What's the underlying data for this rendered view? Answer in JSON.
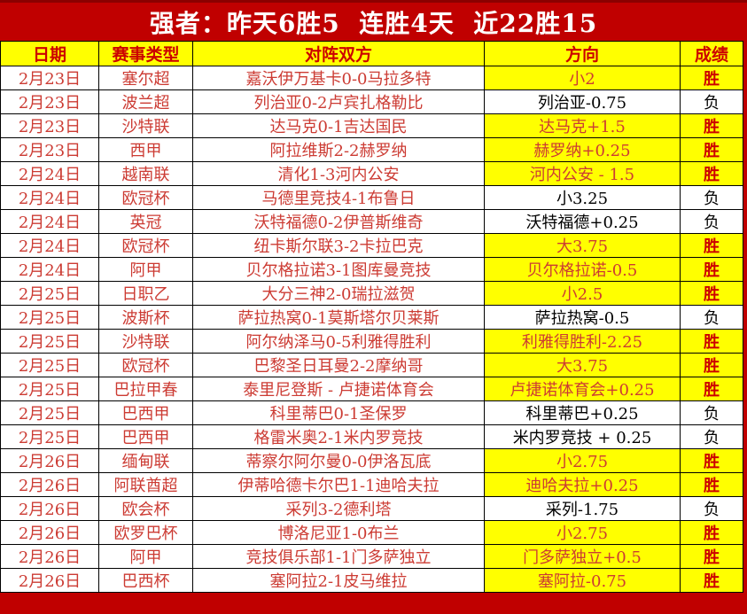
{
  "banner": {
    "title": "强者：昨天6胜5  连胜4天  近22胜15"
  },
  "colors": {
    "banner_red": "#c00000",
    "dark_red": "#8b0000",
    "highlight_yellow": "#ffff00",
    "win_text_red": "#cc0000",
    "cell_text_red": "#cc3b33",
    "loss_text_black": "#000000"
  },
  "table": {
    "columns": [
      "日期",
      "赛事类型",
      "对阵双方",
      "方向",
      "成绩"
    ],
    "rows": [
      {
        "date": "2月23日",
        "league": "塞尔超",
        "match": "嘉沃伊万基卡0-0马拉多特",
        "direction": "小2",
        "result": "胜",
        "win": true
      },
      {
        "date": "2月23日",
        "league": "波兰超",
        "match": "列治亚0-2卢宾扎格勒比",
        "direction": "列治亚-0.75",
        "result": "负",
        "win": false
      },
      {
        "date": "2月23日",
        "league": "沙特联",
        "match": "达马克0-1吉达国民",
        "direction": "达马克+1.5",
        "result": "胜",
        "win": true
      },
      {
        "date": "2月23日",
        "league": "西甲",
        "match": "阿拉维斯2-2赫罗纳",
        "direction": "赫罗纳+0.25",
        "result": "胜",
        "win": true
      },
      {
        "date": "2月24日",
        "league": "越南联",
        "match": "清化1-3河内公安",
        "direction": "河内公安 - 1.5",
        "result": "胜",
        "win": true
      },
      {
        "date": "2月24日",
        "league": "欧冠杯",
        "match": "马德里竞技4-1布鲁日",
        "direction": "小3.25",
        "result": "负",
        "win": false
      },
      {
        "date": "2月24日",
        "league": "英冠",
        "match": "沃特福德0-2伊普斯维奇",
        "direction": "沃特福德+0.25",
        "result": "负",
        "win": false
      },
      {
        "date": "2月24日",
        "league": "欧冠杯",
        "match": "纽卡斯尔联3-2卡拉巴克",
        "direction": "大3.75",
        "result": "胜",
        "win": true
      },
      {
        "date": "2月24日",
        "league": "阿甲",
        "match": "贝尔格拉诺3-1图库曼竞技",
        "direction": "贝尔格拉诺-0.5",
        "result": "胜",
        "win": true
      },
      {
        "date": "2月25日",
        "league": "日职乙",
        "match": "大分三神2-0瑞拉滋贺",
        "direction": "小2.5",
        "result": "胜",
        "win": true
      },
      {
        "date": "2月25日",
        "league": "波斯杯",
        "match": "萨拉热窝0-1莫斯塔尔贝莱斯",
        "direction": "萨拉热窝-0.5",
        "result": "负",
        "win": false
      },
      {
        "date": "2月25日",
        "league": "沙特联",
        "match": "阿尔纳泽马0-5利雅得胜利",
        "direction": "利雅得胜利-2.25",
        "result": "胜",
        "win": true
      },
      {
        "date": "2月25日",
        "league": "欧冠杯",
        "match": "巴黎圣日耳曼2-2摩纳哥",
        "direction": "大3.75",
        "result": "胜",
        "win": true
      },
      {
        "date": "2月25日",
        "league": "巴拉甲春",
        "match": "泰里尼登斯 - 卢捷诺体育会",
        "direction": "卢捷诺体育会+0.25",
        "result": "胜",
        "win": true
      },
      {
        "date": "2月25日",
        "league": "巴西甲",
        "match": "科里蒂巴0-1圣保罗",
        "direction": "科里蒂巴+0.25",
        "result": "负",
        "win": false
      },
      {
        "date": "2月25日",
        "league": "巴西甲",
        "match": "格雷米奥2-1米内罗竞技",
        "direction": "米内罗竞技 + 0.25",
        "result": "负",
        "win": false
      },
      {
        "date": "2月26日",
        "league": "缅甸联",
        "match": "蒂察尔阿尔曼0-0伊洛瓦底",
        "direction": "小2.75",
        "result": "胜",
        "win": true
      },
      {
        "date": "2月26日",
        "league": "阿联酋超",
        "match": "伊蒂哈德卡尔巴1-1迪哈夫拉",
        "direction": "迪哈夫拉+0.25",
        "result": "胜",
        "win": true
      },
      {
        "date": "2月26日",
        "league": "欧会杯",
        "match": "采列3-2德利塔",
        "direction": "采列-1.75",
        "result": "负",
        "win": false
      },
      {
        "date": "2月26日",
        "league": "欧罗巴杯",
        "match": "博洛尼亚1-0布兰",
        "direction": "小2.75",
        "result": "胜",
        "win": true
      },
      {
        "date": "2月26日",
        "league": "阿甲",
        "match": "竞技俱乐部1-1门多萨独立",
        "direction": "门多萨独立+0.5",
        "result": "胜",
        "win": true
      },
      {
        "date": "2月26日",
        "league": "巴西杯",
        "match": "塞阿拉2-1皮马维拉",
        "direction": "塞阿拉-0.75",
        "result": "胜",
        "win": true
      }
    ]
  }
}
